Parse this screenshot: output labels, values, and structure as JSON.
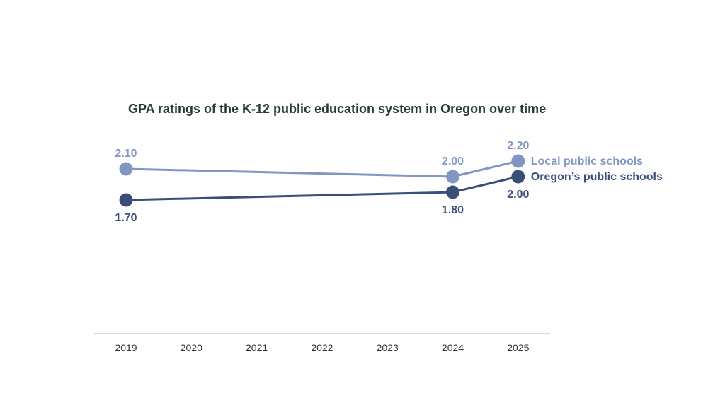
{
  "chart_data": {
    "type": "line",
    "title": "GPA ratings of the K-12 public education system in Oregon over time",
    "categories": [
      "2019",
      "2020",
      "2021",
      "2022",
      "2023",
      "2024",
      "2025"
    ],
    "series": [
      {
        "name": "Local public schools",
        "color": "#8196c2",
        "points": [
          {
            "x": "2019",
            "y": 2.1,
            "label": "2.10"
          },
          {
            "x": "2024",
            "y": 2.0,
            "label": "2.00"
          },
          {
            "x": "2025",
            "y": 2.2,
            "label": "2.20"
          }
        ]
      },
      {
        "name": "Oregon’s public schools",
        "color": "#3b4e7a",
        "points": [
          {
            "x": "2019",
            "y": 1.7,
            "label": "1.70"
          },
          {
            "x": "2024",
            "y": 1.8,
            "label": "1.80"
          },
          {
            "x": "2025",
            "y": 2.0,
            "label": "2.00"
          }
        ]
      }
    ],
    "legend": "right",
    "grid": false
  }
}
